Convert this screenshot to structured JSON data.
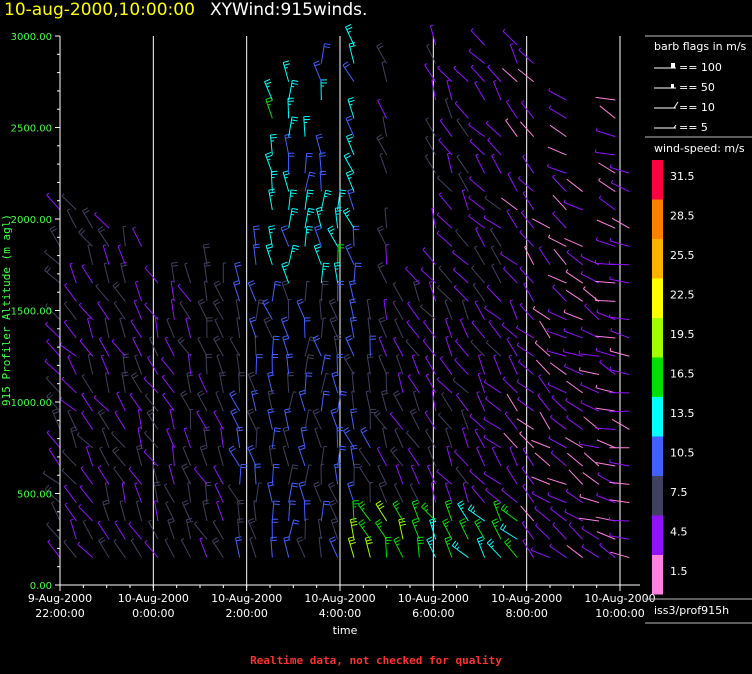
{
  "header": {
    "date_title": "10-aug-2000,10:00:00",
    "product_title": "XYWind:915winds."
  },
  "footer": {
    "quality_note": "Realtime data, not checked for quality"
  },
  "station_label": "iss3/prof915h",
  "barb_legend": {
    "title": "barb flags in m/s",
    "items": [
      "== 100",
      "== 50",
      "== 10",
      "== 5"
    ]
  },
  "speed_legend": {
    "title": "wind-speed: m/s",
    "entries": [
      {
        "label": "31.5",
        "color": "#ff0040"
      },
      {
        "label": "28.5",
        "color": "#ff7f00"
      },
      {
        "label": "25.5",
        "color": "#ffb000"
      },
      {
        "label": "22.5",
        "color": "#ffff00"
      },
      {
        "label": "19.5",
        "color": "#a0ff00"
      },
      {
        "label": "16.5",
        "color": "#00e000"
      },
      {
        "label": "13.5",
        "color": "#00ffff"
      },
      {
        "label": "10.5",
        "color": "#4060ff"
      },
      {
        "label": "7.5",
        "color": "#404060"
      },
      {
        "label": "4.5",
        "color": "#9010ff"
      },
      {
        "label": "1.5",
        "color": "#ff80e0"
      }
    ]
  },
  "chart_data": {
    "type": "scatter",
    "xlabel": "time",
    "ylabel": "915 Profiler Altitude (m agl)",
    "ylim": [
      0,
      3000
    ],
    "xlim_hours": [
      22,
      34.2
    ],
    "y_ticks": [
      "0.00",
      "500.00",
      "1000.00",
      "1500.00",
      "2000.00",
      "2500.00",
      "3000.00"
    ],
    "x_ticks": [
      {
        "date": "9-Aug-2000",
        "time": "22:00:00",
        "hour": 22
      },
      {
        "date": "10-Aug-2000",
        "time": "0:00:00",
        "hour": 24
      },
      {
        "date": "10-Aug-2000",
        "time": "2:00:00",
        "hour": 26
      },
      {
        "date": "10-Aug-2000",
        "time": "4:00:00",
        "hour": 28
      },
      {
        "date": "10-Aug-2000",
        "time": "6:00:00",
        "hour": 30
      },
      {
        "date": "10-Aug-2000",
        "time": "8:00:00",
        "hour": 32
      },
      {
        "date": "10-Aug-2000",
        "time": "10:00:00",
        "hour": 34
      }
    ],
    "grid": "vertical",
    "profiles": [
      {
        "hour": 22.0,
        "top": 2100,
        "dir": 320,
        "spd": 7
      },
      {
        "hour": 22.35,
        "top": 2050,
        "dir": 325,
        "spd": 6
      },
      {
        "hour": 22.7,
        "top": 2000,
        "dir": 330,
        "spd": 6
      },
      {
        "hour": 23.05,
        "top": 1950,
        "dir": 330,
        "spd": 6
      },
      {
        "hour": 23.4,
        "top": 1900,
        "dir": 335,
        "spd": 7
      },
      {
        "hour": 23.75,
        "top": 1850,
        "dir": 335,
        "spd": 6
      },
      {
        "hour": 24.1,
        "top": 1750,
        "dir": 335,
        "spd": 6
      },
      {
        "hour": 24.45,
        "top": 1700,
        "dir": 340,
        "spd": 6
      },
      {
        "hour": 24.8,
        "top": 1750,
        "dir": 340,
        "spd": 7
      },
      {
        "hour": 25.15,
        "top": 1800,
        "dir": 340,
        "spd": 7
      },
      {
        "hour": 25.5,
        "top": 1700,
        "dir": 345,
        "spd": 7
      },
      {
        "hour": 25.85,
        "top": 1650,
        "dir": 345,
        "spd": 8
      },
      {
        "hour": 26.2,
        "top": 2050,
        "dir": 350,
        "spd": 8
      },
      {
        "hour": 26.55,
        "top": 2700,
        "dir": 350,
        "spd": 10
      },
      {
        "hour": 26.9,
        "top": 2800,
        "dir": 355,
        "spd": 9
      },
      {
        "hour": 27.25,
        "top": 2500,
        "dir": 355,
        "spd": 9
      },
      {
        "hour": 27.6,
        "top": 3000,
        "dir": 355,
        "spd": 8
      },
      {
        "hour": 27.95,
        "top": 2100,
        "dir": 350,
        "spd": 10
      },
      {
        "hour": 28.3,
        "top": 3000,
        "dir": 345,
        "spd": 9
      },
      {
        "hour": 28.65,
        "top": 1600,
        "dir": 340,
        "spd": 8
      },
      {
        "hour": 29.0,
        "top": 3000,
        "dir": 340,
        "spd": 7
      },
      {
        "hour": 29.35,
        "top": 1550,
        "dir": 335,
        "spd": 7
      },
      {
        "hour": 29.7,
        "top": 1650,
        "dir": 335,
        "spd": 6
      },
      {
        "hour": 30.05,
        "top": 3000,
        "dir": 330,
        "spd": 6
      },
      {
        "hour": 30.4,
        "top": 2900,
        "dir": 330,
        "spd": 5
      },
      {
        "hour": 30.75,
        "top": 2800,
        "dir": 325,
        "spd": 5
      },
      {
        "hour": 31.1,
        "top": 2950,
        "dir": 325,
        "spd": 5
      },
      {
        "hour": 31.45,
        "top": 2850,
        "dir": 320,
        "spd": 5
      },
      {
        "hour": 31.8,
        "top": 2950,
        "dir": 320,
        "spd": 4
      },
      {
        "hour": 32.15,
        "top": 2900,
        "dir": 315,
        "spd": 4
      },
      {
        "hour": 32.5,
        "top": 2000,
        "dir": 310,
        "spd": 3
      },
      {
        "hour": 32.85,
        "top": 2700,
        "dir": 305,
        "spd": 3
      },
      {
        "hour": 33.2,
        "top": 2200,
        "dir": 300,
        "spd": 3
      },
      {
        "hour": 33.55,
        "top": 2000,
        "dir": 295,
        "spd": 3
      },
      {
        "hour": 33.9,
        "top": 2700,
        "dir": 290,
        "spd": 3
      },
      {
        "hour": 34.2,
        "top": 2400,
        "dir": 285,
        "spd": 3
      }
    ]
  }
}
